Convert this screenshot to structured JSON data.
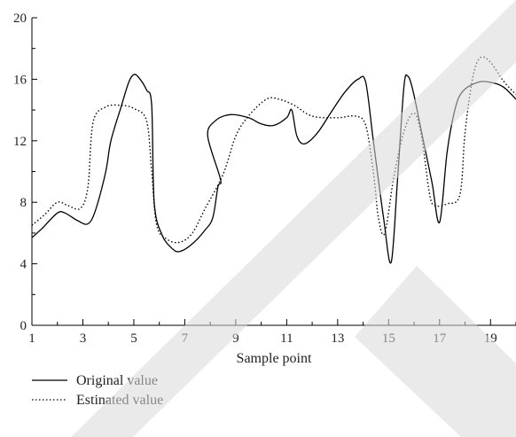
{
  "chart_data": {
    "type": "line",
    "title": "",
    "xlabel": "Sample point",
    "ylabel": "",
    "xlim": [
      1,
      20
    ],
    "ylim": [
      0,
      20
    ],
    "x_ticks": [
      1,
      3,
      5,
      7,
      9,
      11,
      13,
      15,
      17,
      19
    ],
    "y_ticks": [
      0,
      4,
      8,
      12,
      16,
      20
    ],
    "grid": false,
    "legend_position": "bottom-left",
    "series": [
      {
        "name": "Original value",
        "style": "solid",
        "color": "#000000",
        "points": [
          [
            1.0,
            5.7
          ],
          [
            1.4,
            6.3
          ],
          [
            2.0,
            7.3
          ],
          [
            2.3,
            7.3
          ],
          [
            2.8,
            6.8
          ],
          [
            3.2,
            6.6
          ],
          [
            3.5,
            7.5
          ],
          [
            3.9,
            10.0
          ],
          [
            4.1,
            12.0
          ],
          [
            4.5,
            14.2
          ],
          [
            4.8,
            15.8
          ],
          [
            5.0,
            16.3
          ],
          [
            5.2,
            16.1
          ],
          [
            5.5,
            15.3
          ],
          [
            5.7,
            14.3
          ],
          [
            5.8,
            8.0
          ],
          [
            6.1,
            5.9
          ],
          [
            6.5,
            5.0
          ],
          [
            6.8,
            4.8
          ],
          [
            7.3,
            5.3
          ],
          [
            7.8,
            6.2
          ],
          [
            8.1,
            7.0
          ],
          [
            8.3,
            9.0
          ],
          [
            8.4,
            9.5
          ],
          [
            7.9,
            12.3
          ],
          [
            8.2,
            13.3
          ],
          [
            8.8,
            13.7
          ],
          [
            9.5,
            13.5
          ],
          [
            10.0,
            13.1
          ],
          [
            10.5,
            13.0
          ],
          [
            11.0,
            13.5
          ],
          [
            11.2,
            14.0
          ],
          [
            11.4,
            12.3
          ],
          [
            11.7,
            11.8
          ],
          [
            12.2,
            12.5
          ],
          [
            12.8,
            14.0
          ],
          [
            13.3,
            15.2
          ],
          [
            13.8,
            16.0
          ],
          [
            14.1,
            15.8
          ],
          [
            14.4,
            12.0
          ],
          [
            14.8,
            7.0
          ],
          [
            15.1,
            4.1
          ],
          [
            15.35,
            9.5
          ],
          [
            15.6,
            15.5
          ],
          [
            15.75,
            16.2
          ],
          [
            15.95,
            15.3
          ],
          [
            16.3,
            12.5
          ],
          [
            16.7,
            9.3
          ],
          [
            17.0,
            6.7
          ],
          [
            17.3,
            11.3
          ],
          [
            17.6,
            14.0
          ],
          [
            17.9,
            15.2
          ],
          [
            18.5,
            15.8
          ],
          [
            19.0,
            15.8
          ],
          [
            19.5,
            15.5
          ],
          [
            20.0,
            14.7
          ]
        ]
      },
      {
        "name": "Estinated value",
        "style": "dotted",
        "color": "#000000",
        "points": [
          [
            1.0,
            6.5
          ],
          [
            1.5,
            7.2
          ],
          [
            2.0,
            8.0
          ],
          [
            2.4,
            7.8
          ],
          [
            2.9,
            7.6
          ],
          [
            3.2,
            9.0
          ],
          [
            3.4,
            13.2
          ],
          [
            3.9,
            14.2
          ],
          [
            4.5,
            14.3
          ],
          [
            5.0,
            14.1
          ],
          [
            5.5,
            13.3
          ],
          [
            5.7,
            10.0
          ],
          [
            5.9,
            6.5
          ],
          [
            6.3,
            5.6
          ],
          [
            6.8,
            5.4
          ],
          [
            7.3,
            6.0
          ],
          [
            7.8,
            7.6
          ],
          [
            8.5,
            9.8
          ],
          [
            9.0,
            12.3
          ],
          [
            9.5,
            13.6
          ],
          [
            10.2,
            14.7
          ],
          [
            10.7,
            14.7
          ],
          [
            11.3,
            14.3
          ],
          [
            12.0,
            13.6
          ],
          [
            13.0,
            13.5
          ],
          [
            13.7,
            13.6
          ],
          [
            14.1,
            13.0
          ],
          [
            14.4,
            10.0
          ],
          [
            14.6,
            7.0
          ],
          [
            14.85,
            6.0
          ],
          [
            15.2,
            9.6
          ],
          [
            15.6,
            12.6
          ],
          [
            16.0,
            13.8
          ],
          [
            16.3,
            12.2
          ],
          [
            16.6,
            8.6
          ],
          [
            16.8,
            7.8
          ],
          [
            17.3,
            7.9
          ],
          [
            17.8,
            8.5
          ],
          [
            18.0,
            12.5
          ],
          [
            18.3,
            16.1
          ],
          [
            18.6,
            17.4
          ],
          [
            19.0,
            17.1
          ],
          [
            19.5,
            15.9
          ],
          [
            20.0,
            15.0
          ]
        ]
      }
    ]
  },
  "colors": {
    "axis": "#000000",
    "watermark": "#d9d9d9"
  }
}
